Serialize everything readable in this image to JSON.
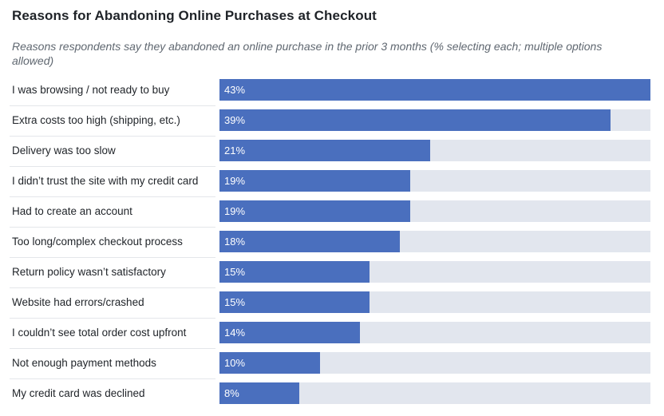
{
  "chart_data": {
    "type": "bar",
    "orientation": "horizontal",
    "title": "Reasons for Abandoning Online Purchases at Checkout",
    "subtitle": "Reasons respondents say they abandoned an online purchase in the prior 3 months (% selecting each; multiple options allowed)",
    "categories": [
      "I was browsing / not ready to buy",
      "Extra costs too high (shipping, etc.)",
      "Delivery was too slow",
      "I didn’t trust the site with my credit card",
      "Had to create an account",
      "Too long/complex checkout process",
      "Return policy wasn’t satisfactory",
      "Website had errors/crashed",
      "I couldn’t see total order cost upfront",
      "Not enough payment methods",
      "My credit card was declined"
    ],
    "values": [
      43,
      39,
      21,
      19,
      19,
      18,
      15,
      15,
      14,
      10,
      8
    ],
    "value_labels": [
      "43%",
      "39%",
      "21%",
      "19%",
      "19%",
      "18%",
      "15%",
      "15%",
      "14%",
      "10%",
      "8%"
    ],
    "xlim": [
      0,
      43
    ],
    "grid": false,
    "legend": "none",
    "colors": {
      "bar": "#4a6fbe",
      "track": "#e2e6ee",
      "value_text": "#ffffff"
    }
  }
}
